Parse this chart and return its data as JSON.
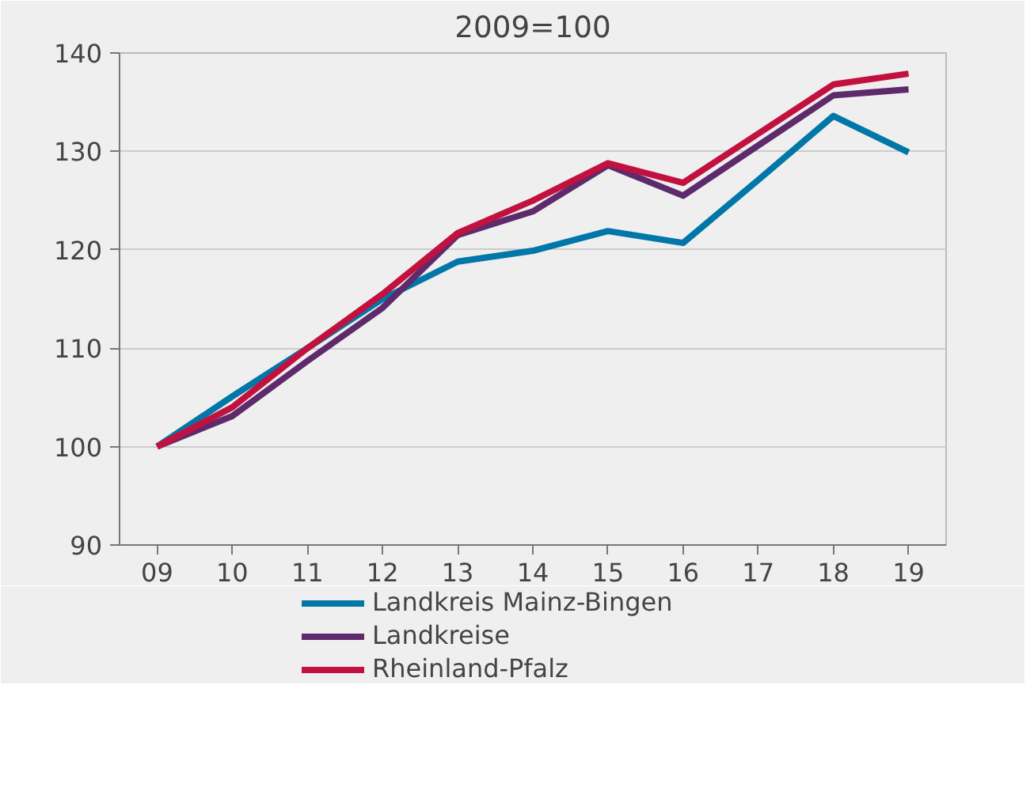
{
  "chart_data": {
    "type": "line",
    "title": "2009=100",
    "categories": [
      "09",
      "10",
      "11",
      "12",
      "13",
      "14",
      "15",
      "16",
      "17",
      "18",
      "19"
    ],
    "series": [
      {
        "name": "Landkreis Mainz-Bingen",
        "color": "#0077a8",
        "values": [
          100,
          105.1,
          110,
          115,
          118.8,
          119.9,
          121.9,
          120.7,
          127.1,
          133.6,
          129.9
        ]
      },
      {
        "name": "Landkreise",
        "color": "#5e2a6b",
        "values": [
          100,
          103.1,
          108.7,
          114.1,
          121.5,
          123.9,
          128.6,
          125.5,
          130.6,
          135.7,
          136.3
        ]
      },
      {
        "name": "Rheinland-Pfalz",
        "color": "#c3113f",
        "values": [
          100,
          104,
          110,
          115.5,
          121.7,
          125,
          128.8,
          126.8,
          131.8,
          136.8,
          137.9
        ]
      }
    ],
    "ylim": [
      90,
      140
    ],
    "yticks": [
      90,
      100,
      110,
      120,
      130,
      140
    ],
    "grid": "y",
    "legend": "bottom",
    "line_style": "solid"
  }
}
